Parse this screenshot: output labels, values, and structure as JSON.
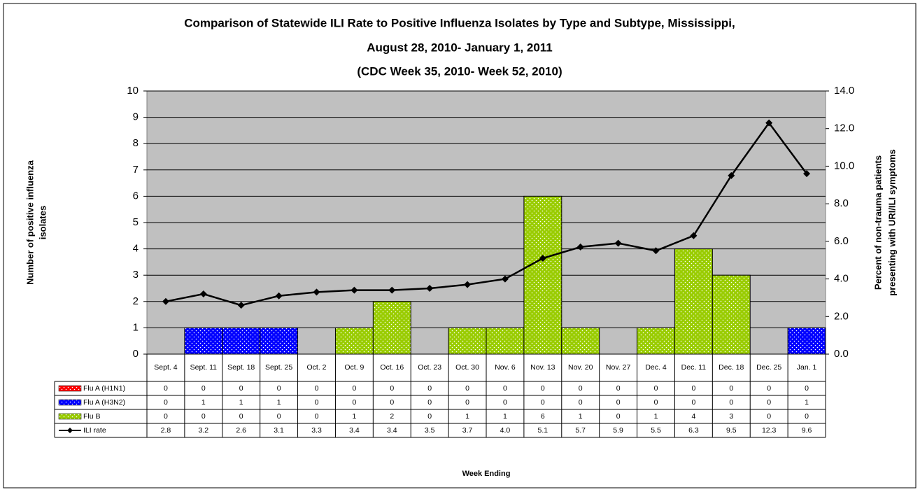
{
  "chart_data": {
    "type": "bar",
    "title": [
      "Comparison of Statewide ILI Rate to Positive Influenza Isolates by Type and Subtype, Mississippi,",
      "August 28, 2010- January 1, 2011",
      "(CDC Week 35, 2010- Week 52, 2010)"
    ],
    "y_label": [
      "Number of positive influenza",
      "isolates"
    ],
    "y2_label": [
      "Percent of non-trauma patients",
      "presenting with URI/ILI symptoms"
    ],
    "x_label": "Week Ending",
    "stacked": true,
    "categories": [
      "Sept. 4",
      "Sept. 11",
      "Sept. 18",
      "Sept. 25",
      "Oct. 2",
      "Oct. 9",
      "Oct. 16",
      "Oct. 23",
      "Oct. 30",
      "Nov. 6",
      "Nov. 13",
      "Nov. 20",
      "Nov. 27",
      "Dec. 4",
      "Dec. 11",
      "Dec. 18",
      "Dec. 25",
      "Jan. 1"
    ],
    "series": [
      {
        "name": "Flu A (H1N1)",
        "color": "#ff0000",
        "values": [
          0,
          0,
          0,
          0,
          0,
          0,
          0,
          0,
          0,
          0,
          0,
          0,
          0,
          0,
          0,
          0,
          0,
          0
        ]
      },
      {
        "name": "Flu A (H3N2)",
        "color": "#0000ff",
        "values": [
          0,
          1,
          1,
          1,
          0,
          0,
          0,
          0,
          0,
          0,
          0,
          0,
          0,
          0,
          0,
          0,
          0,
          1
        ]
      },
      {
        "name": "Flu B",
        "color": "#99cc00",
        "values": [
          0,
          0,
          0,
          0,
          0,
          1,
          2,
          0,
          1,
          1,
          6,
          1,
          0,
          1,
          4,
          3,
          0,
          0
        ]
      },
      {
        "name": "ILI rate",
        "color": "#000000",
        "type": "line",
        "axis": "y2",
        "values": [
          2.8,
          3.2,
          2.6,
          3.1,
          3.3,
          3.4,
          3.4,
          3.5,
          3.7,
          4.0,
          5.1,
          5.7,
          5.9,
          5.5,
          6.3,
          9.5,
          12.3,
          9.6
        ],
        "value_labels": [
          "2.8",
          "3.2",
          "2.6",
          "3.1",
          "3.3",
          "3.4",
          "3.4",
          "3.5",
          "3.7",
          "4.0",
          "5.1",
          "5.7",
          "5.9",
          "5.5",
          "6.3",
          "9.5",
          "12.3",
          "9.6"
        ]
      }
    ],
    "ylim": [
      0,
      10
    ],
    "yticks": [
      0,
      1,
      2,
      3,
      4,
      5,
      6,
      7,
      8,
      9,
      10
    ],
    "y2lim": [
      0,
      14
    ],
    "y2ticks": [
      {
        "value": 0,
        "label": "0.0"
      },
      {
        "value": 2,
        "label": "2.0"
      },
      {
        "value": 4,
        "label": "4.0"
      },
      {
        "value": 6,
        "label": "6.0"
      },
      {
        "value": 8,
        "label": "8.0"
      },
      {
        "value": 10,
        "label": "10.0"
      },
      {
        "value": 12,
        "label": "12.0"
      },
      {
        "value": 14,
        "label": "14.0"
      }
    ],
    "grid": true,
    "plot_background": "#c0c0c0"
  }
}
